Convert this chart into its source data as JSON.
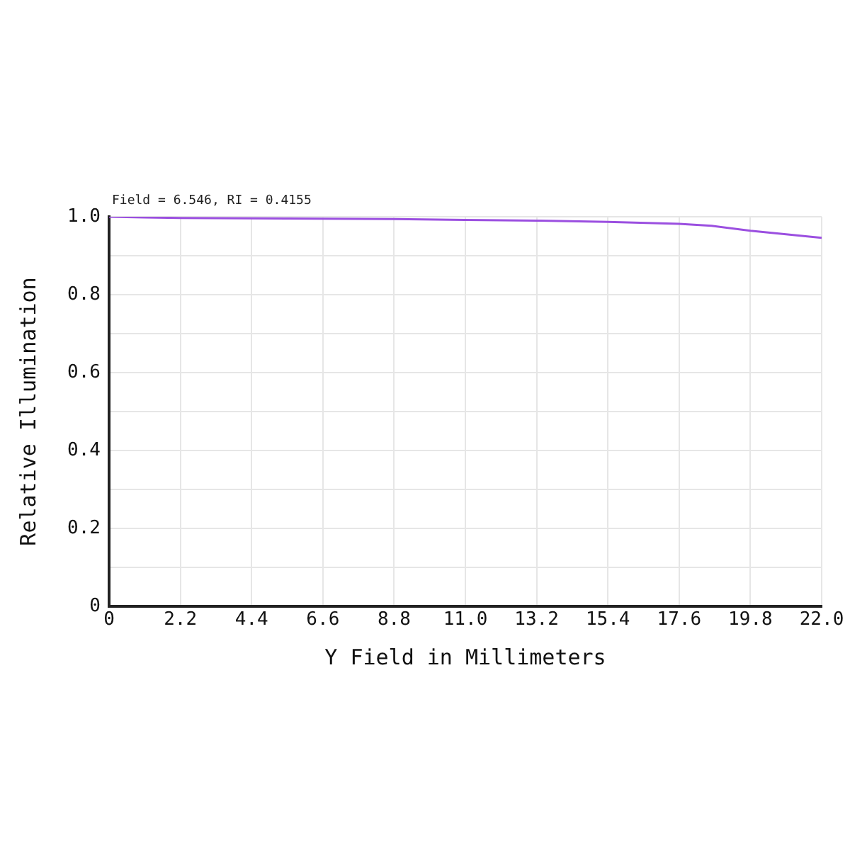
{
  "chart_data": {
    "type": "line",
    "xlabel": "Y Field in Millimeters",
    "ylabel": "Relative Illumination",
    "annotations": [
      "Field = 6.546, RI = 0.4155"
    ],
    "x": [
      0,
      1.1,
      2.2,
      4.4,
      6.6,
      8.8,
      11,
      13.2,
      15.4,
      17.6,
      18.6,
      19.8,
      22
    ],
    "values": [
      1.0,
      0.998,
      0.997,
      0.996,
      0.995,
      0.994,
      0.992,
      0.99,
      0.987,
      0.982,
      0.977,
      0.964,
      0.946
    ],
    "color": "#9b4fe0",
    "xlim": [
      0,
      22
    ],
    "xticks": [
      0,
      2.2,
      4.4,
      6.6,
      8.8,
      {
        "value": 11,
        "label": "11.0"
      },
      13.2,
      15.4,
      17.6,
      19.8,
      {
        "value": 22,
        "label": "22.0"
      }
    ],
    "ylim": [
      0,
      1
    ],
    "yticks": [
      0,
      {
        "value": 0.1,
        "label": null
      },
      0.2,
      {
        "value": 0.3,
        "label": null
      },
      0.4,
      {
        "value": 0.5,
        "label": null
      },
      0.6,
      {
        "value": 0.7,
        "label": null
      },
      0.8,
      {
        "value": 0.9,
        "label": null
      },
      {
        "value": 1,
        "label": "1.0"
      }
    ],
    "grid": true
  }
}
